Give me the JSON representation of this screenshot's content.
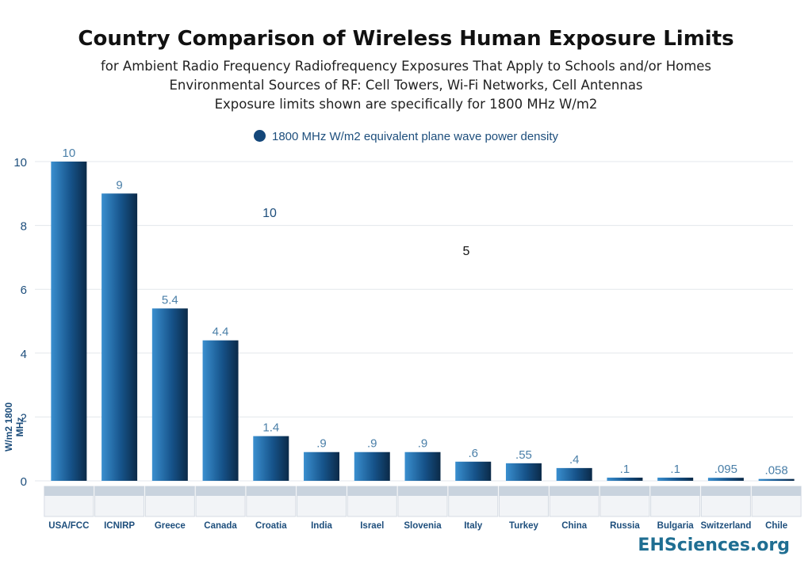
{
  "title": "Country Comparison of Wireless Human Exposure Limits",
  "subtitles": [
    "for Ambient Radio Frequency Radiofrequency Exposures That Apply to Schools and/or Homes",
    "Environmental Sources of RF: Cell Towers, Wi-Fi Networks, Cell Antennas",
    "Exposure limits shown are specifically for 1800 MHz W/m2"
  ],
  "brand": "EHSciences.org",
  "colors": {
    "bar_dark": "#0b2a48",
    "bar_light": "#3a8fcf",
    "axis_text": "#1d4e7c",
    "value_text": "#4a7fa8"
  },
  "chart_data": {
    "type": "bar",
    "title": "Country Comparison of Wireless Human Exposure Limits",
    "ylabel": "W/m2  1800 MHz",
    "xlabel": "",
    "ylim": [
      0,
      10
    ],
    "yticks": [
      0,
      2,
      4,
      6,
      8,
      10
    ],
    "grid": true,
    "legend_position": "top-center",
    "series": [
      {
        "name": "1800 MHz W/m2 equivalent plane wave power density",
        "values": [
          10,
          9,
          5.4,
          4.4,
          1.4,
          0.9,
          0.9,
          0.9,
          0.6,
          0.55,
          0.4,
          0.1,
          0.1,
          0.095,
          0.058
        ],
        "labels": [
          "10",
          "9",
          "5.4",
          "4.4",
          "1.4",
          ".9",
          ".9",
          ".9",
          ".6",
          ".55",
          ".4",
          ".1",
          ".1",
          ".095",
          ".058"
        ]
      }
    ],
    "categories": [
      "USA/FCC",
      "ICNIRP",
      "Greece",
      "Canada",
      "Croatia",
      "India",
      "Israel",
      "Slovenia",
      "Italy",
      "Turkey",
      "China",
      "Russia",
      "Bulgaria",
      "Switzerland",
      "Chile"
    ],
    "annotations": [
      "10",
      "5"
    ]
  }
}
